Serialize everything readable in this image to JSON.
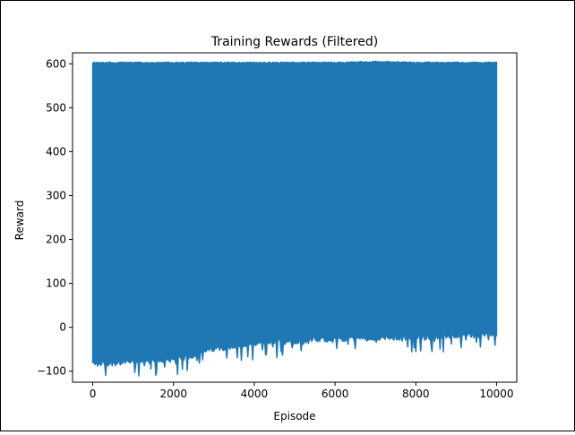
{
  "chart_data": {
    "type": "line",
    "title": "Training Rewards (Filtered)",
    "xlabel": "Episode",
    "ylabel": "Reward",
    "xlim": [
      -500,
      10500
    ],
    "ylim": [
      -125,
      625
    ],
    "xticks": [
      0,
      2000,
      4000,
      6000,
      8000,
      10000
    ],
    "yticks": [
      -100,
      0,
      100,
      200,
      300,
      400,
      500,
      600
    ],
    "grid": false,
    "legend": "none",
    "series": [
      {
        "color": "#1f77b4",
        "x_range": [
          0,
          10000
        ],
        "upper_envelope": {
          "x": [
            0,
            1000,
            2000,
            3000,
            4000,
            5000,
            6000,
            7000,
            8000,
            9000,
            10000
          ],
          "y": [
            604,
            604,
            604,
            604,
            604,
            604,
            604,
            606,
            604,
            604,
            604
          ]
        },
        "lower_envelope": {
          "x": [
            0,
            500,
            1000,
            1500,
            2000,
            2500,
            3000,
            3500,
            4000,
            4500,
            5000,
            5500,
            6000,
            6500,
            7000,
            7500,
            8000,
            8500,
            9000,
            9500,
            10000
          ],
          "y": [
            -90,
            -88,
            -85,
            -82,
            -80,
            -70,
            -55,
            -50,
            -45,
            -40,
            -38,
            -35,
            -33,
            -32,
            -30,
            -30,
            -28,
            -27,
            -25,
            -25,
            -22
          ]
        }
      }
    ]
  }
}
